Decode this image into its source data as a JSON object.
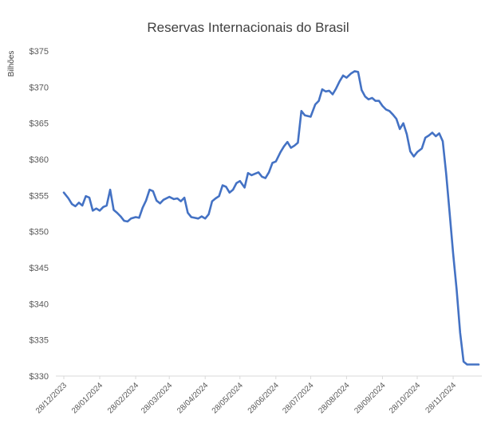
{
  "chart_data": {
    "type": "line",
    "title": "Reservas Internacionais do Brasil",
    "ylabel": "Bilhões",
    "xlabel": "",
    "ylim": [
      330,
      375
    ],
    "yticks": [
      "$375",
      "$370",
      "$365",
      "$360",
      "$355",
      "$350",
      "$345",
      "$340",
      "$335",
      "$330"
    ],
    "ytick_values": [
      375,
      370,
      365,
      360,
      355,
      350,
      345,
      340,
      335,
      330
    ],
    "categories": [
      "28/12/2023",
      "28/01/2024",
      "28/02/2024",
      "28/03/2024",
      "28/04/2024",
      "28/05/2024",
      "28/06/2024",
      "28/07/2024",
      "28/08/2024",
      "28/09/2024",
      "28/10/2024",
      "28/11/2024"
    ],
    "grid": false,
    "legend": "none",
    "line_color": "#4472c4",
    "series": [
      {
        "x": [
          "2023-12-28",
          "2024-01-01",
          "2024-01-04",
          "2024-01-07",
          "2024-01-10",
          "2024-01-13",
          "2024-01-16",
          "2024-01-19",
          "2024-01-22",
          "2024-01-25",
          "2024-01-28",
          "2024-01-31",
          "2024-02-03",
          "2024-02-06",
          "2024-02-09",
          "2024-02-12",
          "2024-02-15",
          "2024-02-18",
          "2024-02-21",
          "2024-02-24",
          "2024-02-28",
          "2024-03-02",
          "2024-03-05",
          "2024-03-08",
          "2024-03-11",
          "2024-03-14",
          "2024-03-17",
          "2024-03-20",
          "2024-03-23",
          "2024-03-28",
          "2024-04-01",
          "2024-04-04",
          "2024-04-07",
          "2024-04-10",
          "2024-04-13",
          "2024-04-16",
          "2024-04-19",
          "2024-04-22",
          "2024-04-25",
          "2024-04-28",
          "2024-05-01",
          "2024-05-04",
          "2024-05-07",
          "2024-05-10",
          "2024-05-13",
          "2024-05-16",
          "2024-05-19",
          "2024-05-22",
          "2024-05-25",
          "2024-05-28",
          "2024-06-01",
          "2024-06-04",
          "2024-06-07",
          "2024-06-10",
          "2024-06-13",
          "2024-06-16",
          "2024-06-19",
          "2024-06-22",
          "2024-06-25",
          "2024-06-28",
          "2024-07-02",
          "2024-07-05",
          "2024-07-08",
          "2024-07-11",
          "2024-07-14",
          "2024-07-17",
          "2024-07-20",
          "2024-07-23",
          "2024-07-28",
          "2024-08-01",
          "2024-08-04",
          "2024-08-07",
          "2024-08-10",
          "2024-08-13",
          "2024-08-16",
          "2024-08-19",
          "2024-08-22",
          "2024-08-25",
          "2024-08-28",
          "2024-09-01",
          "2024-09-04",
          "2024-09-07",
          "2024-09-10",
          "2024-09-13",
          "2024-09-16",
          "2024-09-19",
          "2024-09-22",
          "2024-09-25",
          "2024-09-28",
          "2024-10-01",
          "2024-10-04",
          "2024-10-07",
          "2024-10-10",
          "2024-10-13",
          "2024-10-16",
          "2024-10-19",
          "2024-10-22",
          "2024-10-25",
          "2024-10-28",
          "2024-11-01",
          "2024-11-04",
          "2024-11-07",
          "2024-11-10",
          "2024-11-13",
          "2024-11-16",
          "2024-11-19",
          "2024-11-22",
          "2024-11-25",
          "2024-11-28",
          "2024-12-01",
          "2024-12-04",
          "2024-12-07",
          "2024-12-10",
          "2024-12-13",
          "2024-12-15",
          "2024-12-16",
          "2024-12-17",
          "2024-12-18",
          "2024-12-19",
          "2024-12-20"
        ],
        "values": [
          355.4,
          354.6,
          353.8,
          353.5,
          354.0,
          353.6,
          354.9,
          354.7,
          352.9,
          353.2,
          352.9,
          353.4,
          353.6,
          355.8,
          353.0,
          352.6,
          352.1,
          351.5,
          351.4,
          351.8,
          352.0,
          351.9,
          353.3,
          354.3,
          355.8,
          355.6,
          354.3,
          353.9,
          354.4,
          354.8,
          354.5,
          354.6,
          354.2,
          354.7,
          352.6,
          352.0,
          351.9,
          351.8,
          352.1,
          351.8,
          352.4,
          354.2,
          354.6,
          354.9,
          356.4,
          356.2,
          355.4,
          355.8,
          356.7,
          357.0,
          356.1,
          358.1,
          357.8,
          358.0,
          358.2,
          357.6,
          357.4,
          358.2,
          359.5,
          359.7,
          361.0,
          361.8,
          362.4,
          361.6,
          361.9,
          362.3,
          366.7,
          366.1,
          365.9,
          367.6,
          368.1,
          369.7,
          369.4,
          369.5,
          369.0,
          369.8,
          370.8,
          371.6,
          371.3,
          371.9,
          372.2,
          372.1,
          369.6,
          368.7,
          368.3,
          368.5,
          368.1,
          368.1,
          367.4,
          366.9,
          366.7,
          366.2,
          365.6,
          364.2,
          365.0,
          363.5,
          361.1,
          360.4,
          361.0,
          361.5,
          363.0,
          363.3,
          363.7,
          363.2,
          363.6,
          362.5,
          358.0,
          352.5,
          347.0,
          342.0,
          336.0,
          332.0,
          331.6,
          331.6,
          331.6,
          331.6,
          331.6,
          331.6,
          331.6,
          331.6
        ]
      }
    ]
  }
}
